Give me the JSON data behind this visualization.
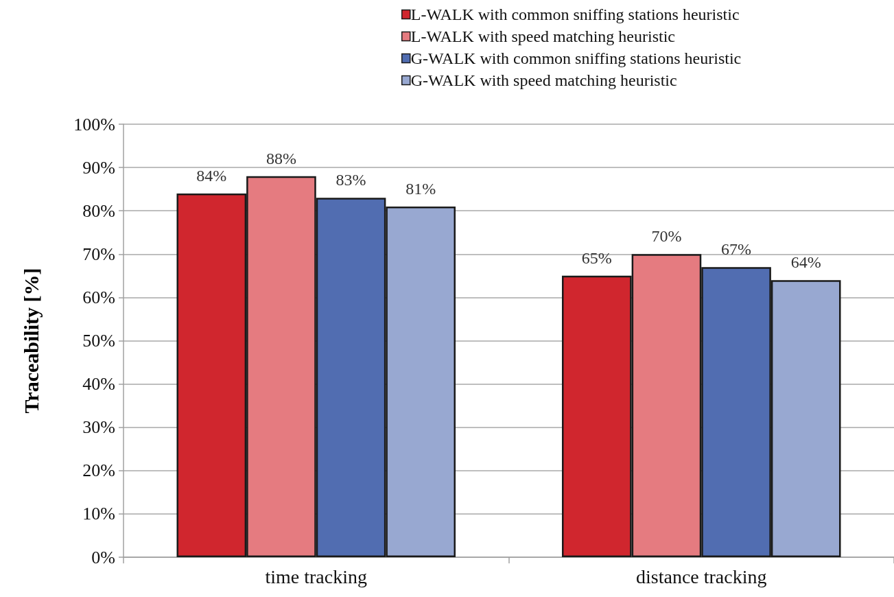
{
  "chart_data": {
    "type": "bar",
    "ylabel": "Traceability [%]",
    "categories": [
      "time tracking",
      "distance tracking"
    ],
    "series": [
      {
        "name": "L-WALK with common sniffing stations heuristic",
        "color": "#d0262e",
        "values": [
          84,
          65
        ],
        "value_labels": [
          "84%",
          "65%"
        ]
      },
      {
        "name": "L-WALK with speed matching heuristic",
        "color": "#e57b80",
        "values": [
          88,
          70
        ],
        "value_labels": [
          "88%",
          "70%"
        ]
      },
      {
        "name": "G-WALK with common sniffing stations heuristic",
        "color": "#516db1",
        "values": [
          83,
          67
        ],
        "value_labels": [
          "83%",
          "67%"
        ]
      },
      {
        "name": "G-WALK with speed matching heuristic",
        "color": "#98a8d1",
        "values": [
          81,
          64
        ],
        "value_labels": [
          "81%",
          "64%"
        ]
      }
    ],
    "ylim": [
      0,
      100
    ],
    "yticks": [
      {
        "value": 0,
        "label": "0%"
      },
      {
        "value": 10,
        "label": "10%"
      },
      {
        "value": 20,
        "label": "20%"
      },
      {
        "value": 30,
        "label": "30%"
      },
      {
        "value": 40,
        "label": "40%"
      },
      {
        "value": 50,
        "label": "50%"
      },
      {
        "value": 60,
        "label": "60%"
      },
      {
        "value": 70,
        "label": "70%"
      },
      {
        "value": 80,
        "label": "80%"
      },
      {
        "value": 90,
        "label": "90%"
      },
      {
        "value": 100,
        "label": "100%"
      }
    ],
    "grid": "y",
    "legend": "top right"
  }
}
